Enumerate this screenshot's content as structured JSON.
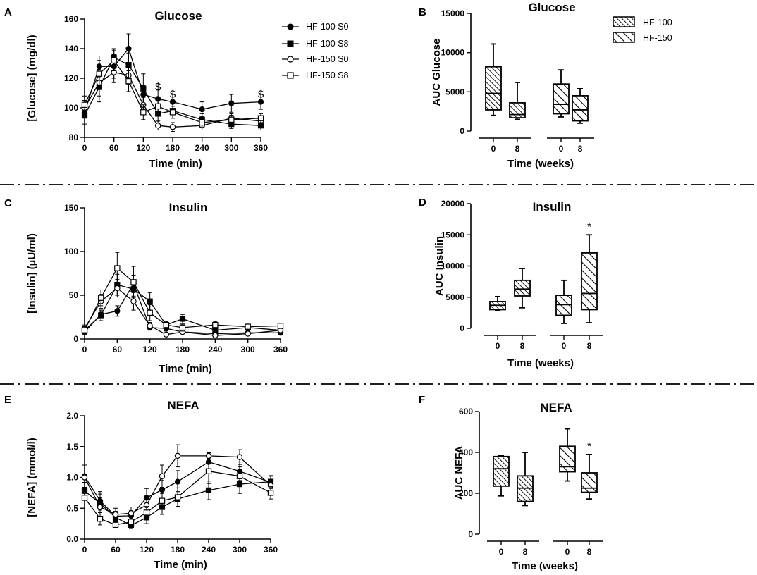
{
  "colors": {
    "axis": "#000000",
    "filled_marker": "#000000",
    "open_marker": "#ffffff",
    "background": "#ffffff",
    "hatch": "#000000"
  },
  "legend_line": {
    "entries": [
      {
        "label": "HF-100 S0",
        "marker": "filled-circle"
      },
      {
        "label": "HF-100 S8",
        "marker": "filled-square"
      },
      {
        "label": "HF-150 S0",
        "marker": "open-circle"
      },
      {
        "label": "HF-150 S8",
        "marker": "open-square"
      }
    ]
  },
  "legend_box": {
    "entries": [
      {
        "label": "HF-100",
        "hatch": "dense"
      },
      {
        "label": "HF-150",
        "hatch": "wide"
      }
    ]
  },
  "chart_data": [
    {
      "id": "A",
      "letter": "A",
      "type": "line",
      "title": "Glucose",
      "xlabel": "Time (min)",
      "ylabel": "[Glucose] (mg/dl)",
      "xlim": [
        0,
        360
      ],
      "ylim": [
        80,
        160
      ],
      "xticks": [
        0,
        60,
        120,
        180,
        240,
        300,
        360
      ],
      "yticks": [
        80,
        100,
        120,
        140,
        160
      ],
      "ytick_labels": [
        "80",
        "100",
        "120",
        "140",
        "160"
      ],
      "x": [
        0,
        30,
        60,
        90,
        120,
        150,
        180,
        240,
        300,
        360
      ],
      "series": [
        {
          "name": "HF-100 S0",
          "marker": "filled-circle",
          "values": [
            97,
            128,
            128,
            140,
            109,
            106,
            104,
            99,
            103,
            104
          ],
          "errors": [
            4,
            7,
            8,
            10,
            6,
            6,
            5,
            5,
            6,
            5
          ]
        },
        {
          "name": "HF-100 S8",
          "marker": "filled-square",
          "values": [
            95,
            114,
            134,
            129,
            113,
            96,
            98,
            92,
            89,
            88
          ],
          "errors": [
            6,
            10,
            6,
            8,
            10,
            5,
            5,
            4,
            3,
            3
          ]
        },
        {
          "name": "HF-150 S0",
          "marker": "open-circle",
          "values": [
            100,
            117,
            124,
            122,
            102,
            88,
            87,
            88,
            93,
            91
          ],
          "errors": [
            5,
            9,
            7,
            6,
            5,
            3,
            3,
            3,
            3,
            3
          ]
        },
        {
          "name": "HF-150 S8",
          "marker": "open-square",
          "values": [
            102,
            123,
            132,
            118,
            97,
            101,
            97,
            90,
            92,
            93
          ],
          "errors": [
            6,
            9,
            7,
            7,
            5,
            5,
            4,
            3,
            3,
            3
          ]
        }
      ],
      "annotations": [
        {
          "text": "$",
          "x": 150,
          "y": 112
        },
        {
          "text": "$",
          "x": 180,
          "y": 107
        },
        {
          "text": "$",
          "x": 360,
          "y": 107
        }
      ]
    },
    {
      "id": "B",
      "letter": "B",
      "type": "box",
      "title": "Glucose",
      "xlabel": "Time (weeks)",
      "ylabel": "AUC Glucose",
      "ylim": [
        0,
        15000
      ],
      "yticks": [
        0,
        5000,
        10000,
        15000
      ],
      "ytick_labels": [
        "0",
        "5000",
        "10000",
        "15000"
      ],
      "categories": [
        "0",
        "8",
        "0",
        "8"
      ],
      "boxes": [
        {
          "group": "HF-100",
          "week": "0",
          "min": 2000,
          "q1": 2700,
          "median": 4800,
          "q3": 8200,
          "max": 11100
        },
        {
          "group": "HF-100",
          "week": "8",
          "min": 1500,
          "q1": 1700,
          "median": 2100,
          "q3": 3600,
          "max": 6200
        },
        {
          "group": "HF-150",
          "week": "0",
          "min": 1800,
          "q1": 2200,
          "median": 3400,
          "q3": 6000,
          "max": 7800
        },
        {
          "group": "HF-150",
          "week": "8",
          "min": 1000,
          "q1": 1300,
          "median": 2700,
          "q3": 4500,
          "max": 5400
        }
      ],
      "annotations": []
    },
    {
      "id": "C",
      "letter": "C",
      "type": "line",
      "title": "Insulin",
      "xlabel": "Time (min)",
      "ylabel": "[Insulin] (µU/ml)",
      "xlim": [
        0,
        360
      ],
      "ylim": [
        0,
        150
      ],
      "xticks": [
        0,
        60,
        120,
        180,
        240,
        300,
        360
      ],
      "yticks": [
        0,
        50,
        100,
        150
      ],
      "ytick_labels": [
        "0",
        "50",
        "100",
        "150"
      ],
      "x": [
        0,
        30,
        60,
        90,
        120,
        150,
        180,
        240,
        300,
        360
      ],
      "series": [
        {
          "name": "HF-100 S0",
          "marker": "filled-circle",
          "values": [
            8,
            28,
            32,
            63,
            13,
            12,
            8,
            6,
            7,
            7
          ],
          "errors": [
            3,
            5,
            6,
            10,
            3,
            3,
            2,
            2,
            2,
            2
          ]
        },
        {
          "name": "HF-100 S8",
          "marker": "filled-square",
          "values": [
            10,
            27,
            62,
            57,
            43,
            16,
            23,
            10,
            13,
            10
          ],
          "errors": [
            3,
            6,
            12,
            8,
            10,
            4,
            5,
            3,
            2,
            2
          ]
        },
        {
          "name": "HF-150 S0",
          "marker": "open-circle",
          "values": [
            12,
            43,
            58,
            43,
            15,
            5,
            8,
            4,
            6,
            10
          ],
          "errors": [
            4,
            8,
            10,
            10,
            4,
            2,
            2,
            2,
            2,
            2
          ]
        },
        {
          "name": "HF-150 S8",
          "marker": "open-square",
          "values": [
            10,
            47,
            81,
            65,
            30,
            16,
            13,
            16,
            14,
            15
          ],
          "errors": [
            4,
            9,
            18,
            18,
            9,
            4,
            4,
            4,
            3,
            3
          ]
        }
      ],
      "annotations": []
    },
    {
      "id": "D",
      "letter": "D",
      "type": "box",
      "title": "Insulin",
      "xlabel": "Time (weeks)",
      "ylabel": "AUC Insulin",
      "ylim": [
        0,
        20000
      ],
      "yticks": [
        0,
        5000,
        10000,
        15000,
        20000
      ],
      "ytick_labels": [
        "0",
        "5000",
        "10000",
        "15000",
        "20000"
      ],
      "categories": [
        "0",
        "8",
        "0",
        "8"
      ],
      "boxes": [
        {
          "group": "HF-100",
          "week": "0",
          "min": 2900,
          "q1": 3000,
          "median": 3700,
          "q3": 4300,
          "max": 5100
        },
        {
          "group": "HF-100",
          "week": "8",
          "min": 3300,
          "q1": 5200,
          "median": 6300,
          "q3": 7700,
          "max": 9600
        },
        {
          "group": "HF-150",
          "week": "0",
          "min": 800,
          "q1": 2100,
          "median": 3800,
          "q3": 5300,
          "max": 7700
        },
        {
          "group": "HF-150",
          "week": "8",
          "min": 900,
          "q1": 3000,
          "median": 5600,
          "q3": 12100,
          "max": 15000
        }
      ],
      "annotations": [
        {
          "text": "*",
          "box": 3
        }
      ]
    },
    {
      "id": "E",
      "letter": "E",
      "type": "line",
      "title": "NEFA",
      "xlabel": "Time (min)",
      "ylabel": "[NEFA] (mmol/l)",
      "xlim": [
        0,
        360
      ],
      "ylim": [
        0,
        2
      ],
      "xticks": [
        0,
        60,
        120,
        180,
        240,
        300,
        360
      ],
      "yticks": [
        0,
        0.5,
        1,
        1.5,
        2
      ],
      "ytick_labels": [
        "0.0",
        "0.5",
        "1.0",
        "1.5",
        "2.0"
      ],
      "x": [
        0,
        30,
        60,
        90,
        120,
        150,
        180,
        240,
        300,
        360
      ],
      "series": [
        {
          "name": "HF-100 S0",
          "marker": "filled-circle",
          "values": [
            1.02,
            0.62,
            0.37,
            0.38,
            0.67,
            0.8,
            0.93,
            1.25,
            1.1,
            0.92
          ],
          "errors": [
            0.18,
            0.15,
            0.08,
            0.08,
            0.15,
            0.15,
            0.18,
            0.12,
            0.15,
            0.1
          ]
        },
        {
          "name": "HF-100 S8",
          "marker": "filled-square",
          "values": [
            0.78,
            0.58,
            0.35,
            0.22,
            0.35,
            0.52,
            0.65,
            0.79,
            0.89,
            0.93
          ],
          "errors": [
            0.14,
            0.15,
            0.08,
            0.05,
            0.1,
            0.12,
            0.12,
            0.15,
            0.15,
            0.1
          ]
        },
        {
          "name": "HF-150 S0",
          "marker": "open-circle",
          "values": [
            1.0,
            0.52,
            0.4,
            0.42,
            0.55,
            1.02,
            1.35,
            1.35,
            1.33,
            0.87
          ],
          "errors": [
            0.2,
            0.15,
            0.1,
            0.1,
            0.12,
            0.18,
            0.18,
            0.05,
            0.12,
            0.1
          ]
        },
        {
          "name": "HF-150 S8",
          "marker": "open-square",
          "values": [
            0.67,
            0.33,
            0.23,
            0.28,
            0.43,
            0.62,
            0.68,
            1.1,
            1.02,
            0.75
          ],
          "errors": [
            0.15,
            0.1,
            0.05,
            0.05,
            0.1,
            0.12,
            0.15,
            0.2,
            0.15,
            0.1
          ]
        }
      ],
      "annotations": []
    },
    {
      "id": "F",
      "letter": "F",
      "type": "box",
      "title": "NEFA",
      "xlabel": "Time (weeks)",
      "ylabel": "AUC NEFA",
      "ylim": [
        0,
        600
      ],
      "yticks": [
        0,
        200,
        400,
        600
      ],
      "ytick_labels": [
        "0",
        "200",
        "400",
        "600"
      ],
      "categories": [
        "0",
        "8",
        "0",
        "8"
      ],
      "boxes": [
        {
          "group": "HF-100",
          "week": "0",
          "min": 187,
          "q1": 235,
          "median": 320,
          "q3": 380,
          "max": 385
        },
        {
          "group": "HF-100",
          "week": "8",
          "min": 140,
          "q1": 160,
          "median": 225,
          "q3": 285,
          "max": 400
        },
        {
          "group": "HF-150",
          "week": "0",
          "min": 260,
          "q1": 305,
          "median": 330,
          "q3": 430,
          "max": 515
        },
        {
          "group": "HF-150",
          "week": "8",
          "min": 172,
          "q1": 205,
          "median": 225,
          "q3": 300,
          "max": 390
        }
      ],
      "annotations": [
        {
          "text": "*",
          "box": 3
        }
      ]
    }
  ]
}
